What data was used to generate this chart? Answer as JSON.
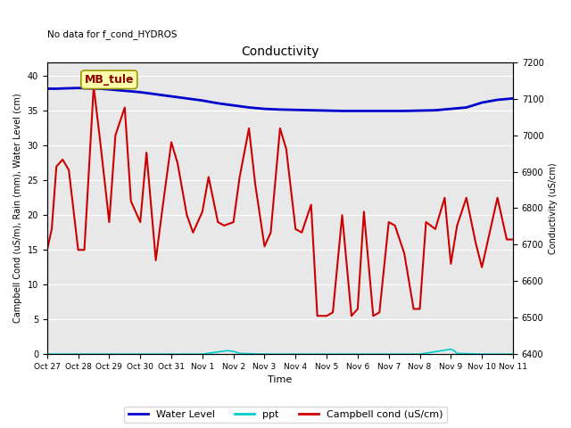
{
  "title": "Conductivity",
  "top_left_text": "No data for f_cond_HYDROS",
  "xlabel": "Time",
  "ylabel_left": "Campbell Cond (uS/m), Rain (mm), Water Level (cm)",
  "ylabel_right": "Conductivity (uS/cm)",
  "annotation_box": "MB_tule",
  "xlim": [
    0,
    15
  ],
  "ylim_left": [
    0,
    42
  ],
  "ylim_right": [
    6400,
    7200
  ],
  "yticks_left": [
    0,
    5,
    10,
    15,
    20,
    25,
    30,
    35,
    40
  ],
  "yticks_right": [
    6400,
    6500,
    6600,
    6700,
    6800,
    6900,
    7000,
    7100,
    7200
  ],
  "xtick_labels": [
    "Oct 27",
    "Oct 28",
    "Oct 29",
    "Oct 30",
    "Oct 31",
    "Nov 1",
    "Nov 2",
    "Nov 3",
    "Nov 4",
    "Nov 5",
    "Nov 6",
    "Nov 7",
    "Nov 8",
    "Nov 9",
    "Nov 10",
    "Nov 11"
  ],
  "xtick_positions": [
    0,
    1,
    2,
    3,
    4,
    5,
    6,
    7,
    8,
    9,
    10,
    11,
    12,
    13,
    14,
    15
  ],
  "background_color": "#e8e8e8",
  "fig_background": "#ffffff",
  "water_level_color": "#0000cc",
  "ppt_color": "#00cccc",
  "campbell_color": "#cc0000",
  "water_level_x": [
    0,
    0.3,
    0.6,
    1.0,
    1.3,
    1.7,
    2.0,
    2.5,
    3.0,
    3.5,
    4.0,
    4.5,
    5.0,
    5.5,
    6.0,
    6.5,
    7.0,
    7.5,
    8.0,
    8.5,
    9.0,
    9.5,
    10.0,
    10.5,
    11.0,
    11.5,
    12.0,
    12.5,
    13.0,
    13.5,
    14.0,
    14.5,
    15.0
  ],
  "water_level_y": [
    38.2,
    38.2,
    38.25,
    38.3,
    38.25,
    38.2,
    38.1,
    37.9,
    37.7,
    37.4,
    37.1,
    36.8,
    36.5,
    36.1,
    35.8,
    35.5,
    35.3,
    35.2,
    35.15,
    35.1,
    35.05,
    35.0,
    35.0,
    35.0,
    35.0,
    35.0,
    35.05,
    35.1,
    35.3,
    35.5,
    36.2,
    36.6,
    36.8
  ],
  "ppt_x": [
    0,
    1,
    2,
    3,
    4,
    5,
    5.8,
    6.0,
    6.2,
    7,
    8,
    9,
    10,
    11,
    12,
    13.0,
    13.1,
    13.2,
    14,
    15
  ],
  "ppt_y": [
    0,
    0,
    0,
    0,
    0,
    0,
    0.5,
    0.4,
    0.1,
    0,
    0,
    0,
    0,
    0,
    0,
    0.7,
    0.5,
    0.1,
    0,
    0
  ],
  "campbell_x": [
    0.0,
    0.15,
    0.3,
    0.5,
    0.7,
    1.0,
    1.2,
    1.5,
    1.7,
    2.0,
    2.2,
    2.5,
    2.7,
    3.0,
    3.2,
    3.5,
    3.7,
    4.0,
    4.2,
    4.5,
    4.7,
    5.0,
    5.2,
    5.5,
    5.7,
    6.0,
    6.2,
    6.5,
    6.7,
    7.0,
    7.2,
    7.5,
    7.7,
    8.0,
    8.2,
    8.5,
    8.7,
    9.0,
    9.2,
    9.5,
    9.8,
    10.0,
    10.2,
    10.5,
    10.7,
    11.0,
    11.2,
    11.5,
    11.8,
    12.0,
    12.2,
    12.5,
    12.8,
    13.0,
    13.2,
    13.5,
    13.8,
    14.0,
    14.2,
    14.5,
    14.8,
    15.0
  ],
  "campbell_y": [
    15.0,
    18.0,
    27.0,
    28.0,
    26.5,
    15.0,
    15.0,
    38.5,
    31.0,
    19.0,
    31.5,
    35.5,
    22.0,
    19.0,
    29.0,
    13.5,
    20.5,
    30.5,
    27.5,
    20.0,
    17.5,
    20.5,
    25.5,
    19.0,
    18.5,
    19.0,
    25.5,
    32.5,
    24.5,
    15.5,
    17.5,
    32.5,
    29.5,
    18.0,
    17.5,
    21.5,
    5.5,
    5.5,
    6.0,
    20.0,
    5.5,
    6.5,
    20.5,
    5.5,
    6.0,
    19.0,
    18.5,
    14.5,
    6.5,
    6.5,
    19.0,
    18.0,
    22.5,
    13.0,
    18.5,
    22.5,
    16.0,
    12.5,
    16.5,
    22.5,
    16.5,
    16.5
  ]
}
